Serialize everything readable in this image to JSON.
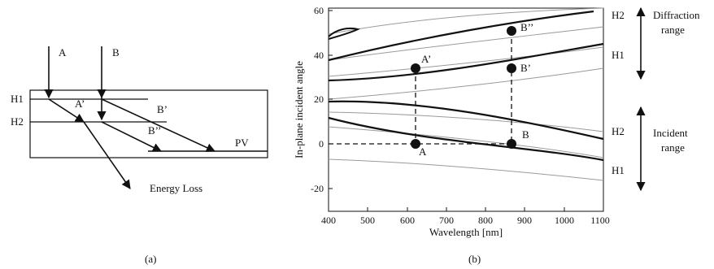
{
  "panel_a": {
    "caption": "(a)",
    "ray_a_label": "A",
    "ray_b_label": "B",
    "h1_label": "H1",
    "h2_label": "H2",
    "a_prime_label": "A’",
    "b_prime_label": "B’",
    "b_double_prime_label": "B’’",
    "pv_label": "PV",
    "energy_loss_label": "Energy Loss"
  },
  "panel_b": {
    "caption": "(b)",
    "xlabel": "Wavelength [nm]",
    "ylabel": "In-plane incident angle",
    "x_ticks": [
      "400",
      "500",
      "600",
      "700",
      "800",
      "900",
      "1000",
      "1100"
    ],
    "y_ticks": [
      "60",
      "40",
      "20",
      "0",
      "-20"
    ],
    "point_labels": {
      "A": "A",
      "A_prime": "A’",
      "B": "B",
      "B_prime": "B’",
      "B_double_prime": "B’’"
    },
    "right_labels": {
      "h2_top": "H2",
      "h1_top": "H1",
      "h2_bottom": "H2",
      "h1_bottom": "H1"
    },
    "diffraction_range": [
      "Diffraction",
      "range"
    ],
    "incident_range": [
      "Incident",
      "range"
    ]
  },
  "colors": {
    "ink": "#111111",
    "thin_curve": "#9a9a9a"
  }
}
